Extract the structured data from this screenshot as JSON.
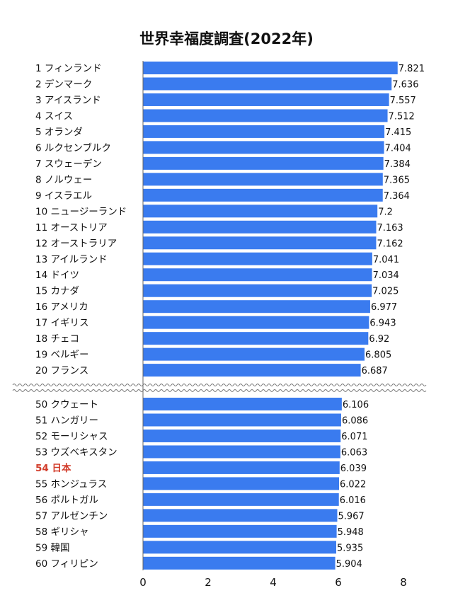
{
  "chart_data": {
    "type": "bar",
    "orientation": "horizontal",
    "title": "世界幸福度調査(2022年)",
    "xlim": [
      0,
      8
    ],
    "xticks": [
      "0",
      "2",
      "4",
      "6",
      "8"
    ],
    "bar_color": "#3a7bef",
    "highlight_color": "#d23c2a",
    "axis_break": "between rank 20 and rank 50",
    "groups": [
      {
        "categories": [
          "1 フィンランド",
          "2 デンマーク",
          "3 アイスランド",
          "4 スイス",
          "5 オランダ",
          "6 ルクセンブルク",
          "7 スウェーデン",
          "8 ノルウェー",
          "9 イスラエル",
          "10 ニュージーランド",
          "11 オーストリア",
          "12 オーストラリア",
          "13 アイルランド",
          "14 ドイツ",
          "15 カナダ",
          "16 アメリカ",
          "17 イギリス",
          "18 チェコ",
          "19 ベルギー",
          "20 フランス"
        ],
        "values": [
          7.821,
          7.636,
          7.557,
          7.512,
          7.415,
          7.404,
          7.384,
          7.365,
          7.364,
          7.2,
          7.163,
          7.162,
          7.041,
          7.034,
          7.025,
          6.977,
          6.943,
          6.92,
          6.805,
          6.687
        ],
        "value_labels": [
          "7.821",
          "7.636",
          "7.557",
          "7.512",
          "7.415",
          "7.404",
          "7.384",
          "7.365",
          "7.364",
          "7.2",
          "7.163",
          "7.162",
          "7.041",
          "7.034",
          "7.025",
          "6.977",
          "6.943",
          "6.92",
          "6.805",
          "6.687"
        ]
      },
      {
        "categories": [
          "50 クウェート",
          "51 ハンガリー",
          "52 モーリシャス",
          "53 ウズベキスタン",
          "54 日本",
          "55 ホンジュラス",
          "56 ポルトガル",
          "57 アルゼンチン",
          "58 ギリシャ",
          "59 韓国",
          "60 フィリピン"
        ],
        "values": [
          6.106,
          6.086,
          6.071,
          6.063,
          6.039,
          6.022,
          6.016,
          5.967,
          5.948,
          5.935,
          5.904
        ],
        "value_labels": [
          "6.106",
          "6.086",
          "6.071",
          "6.063",
          "6.039",
          "6.022",
          "6.016",
          "5.967",
          "5.948",
          "5.935",
          "5.904"
        ],
        "highlight": "54 日本"
      }
    ]
  }
}
